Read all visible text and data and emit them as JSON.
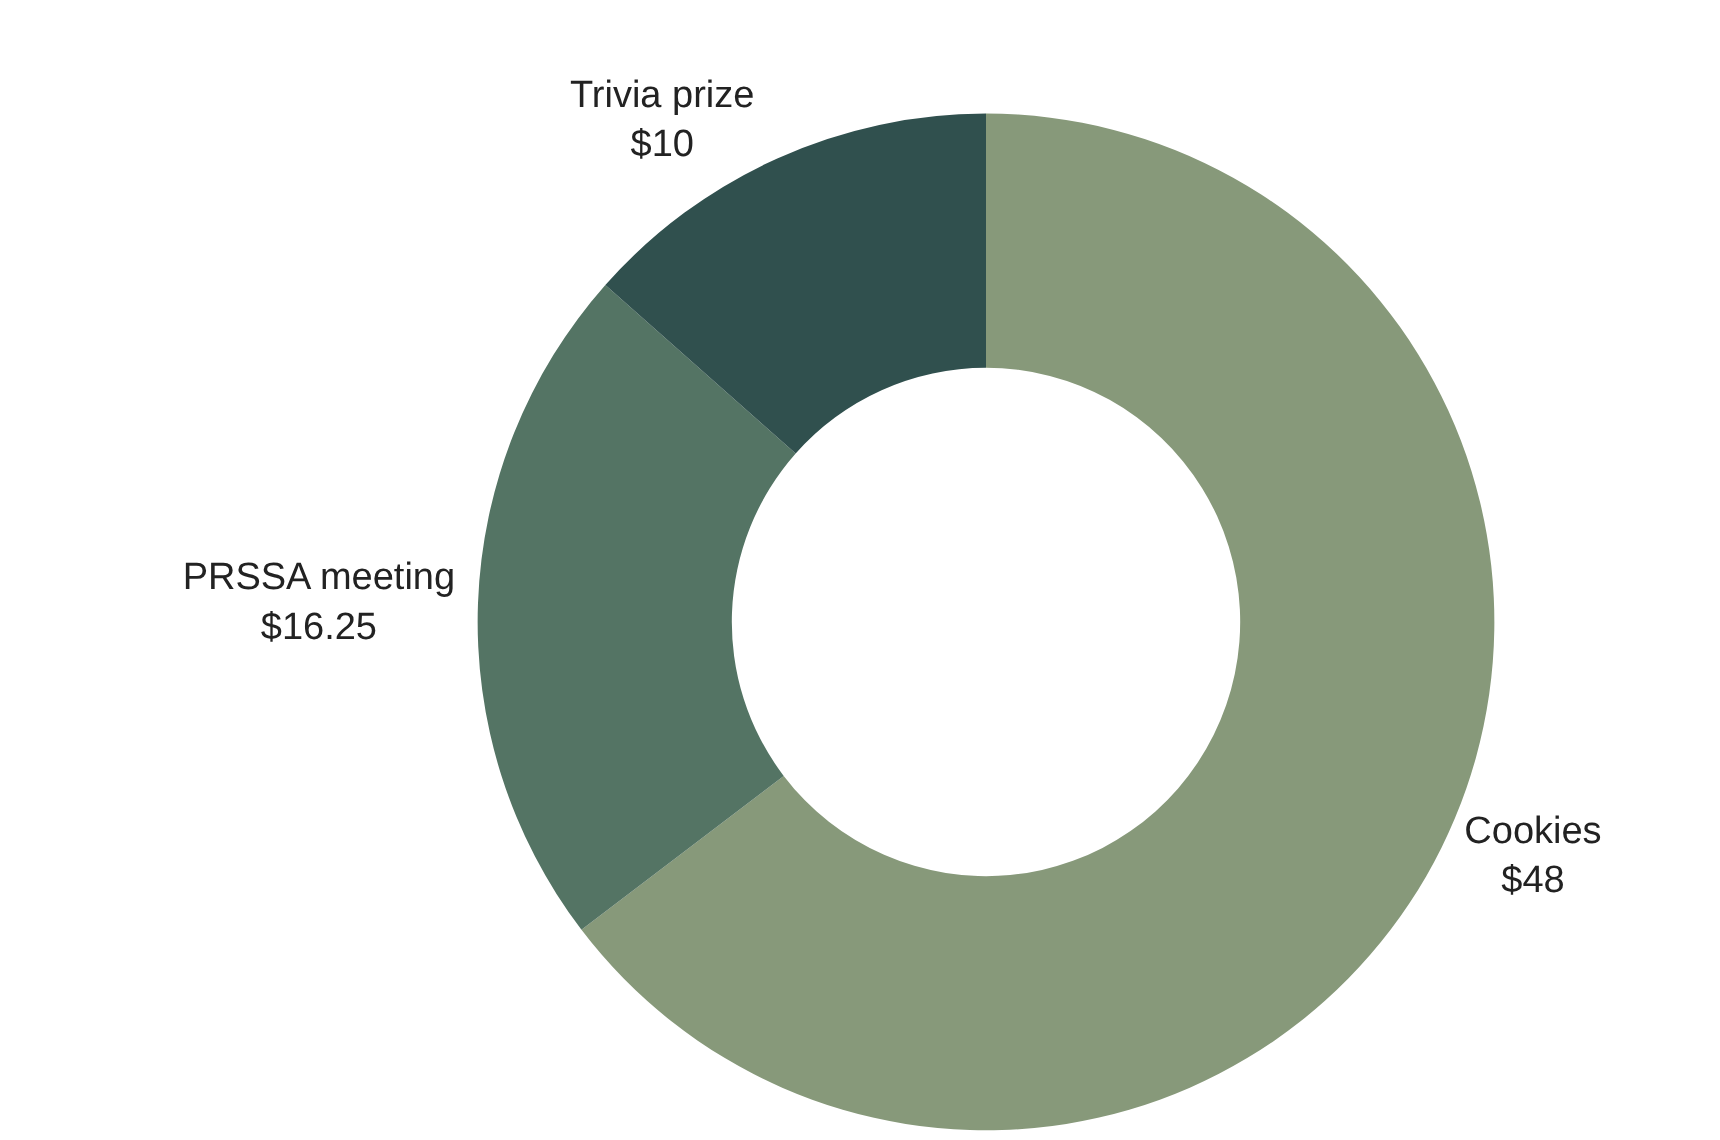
{
  "chart_data": {
    "type": "donut",
    "categories": [
      "Cookies",
      "PRSSA meeting",
      "Trivia prize"
    ],
    "values": [
      48,
      16.25,
      10
    ],
    "colors": [
      "#87997a",
      "#547464",
      "#30504e"
    ],
    "value_labels": [
      "$48",
      "$16.25",
      "$10"
    ],
    "legend": false
  }
}
